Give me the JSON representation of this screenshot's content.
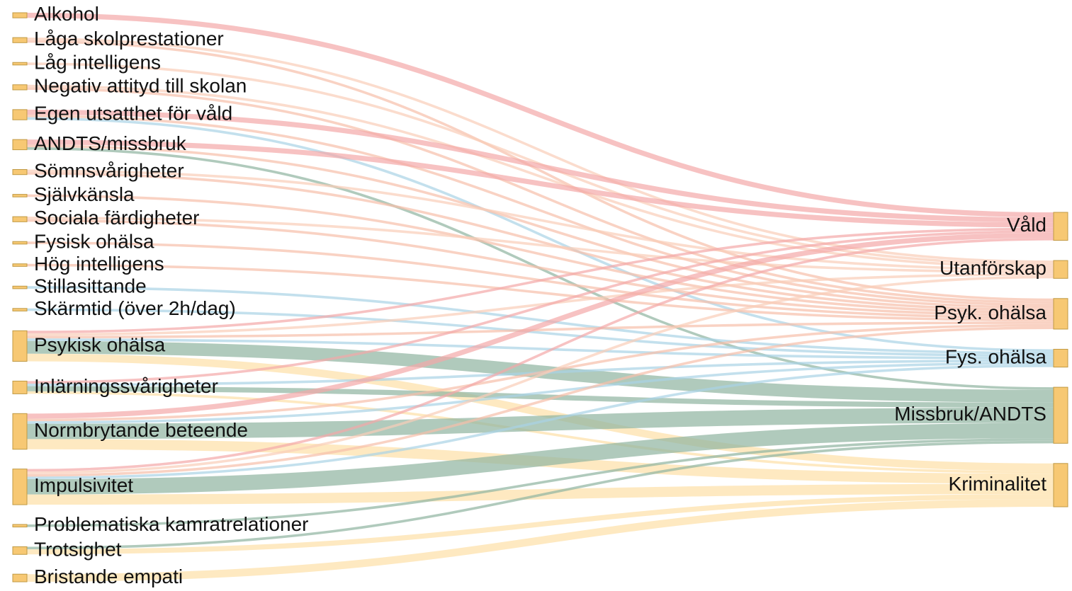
{
  "chart_data": {
    "type": "sankey",
    "node_color": "#f7c873",
    "node_stroke": "#c09a45",
    "nodes": [
      {
        "name": "Alkohol"
      },
      {
        "name": "Låga skolprestationer"
      },
      {
        "name": "Låg intelligens"
      },
      {
        "name": "Negativ attityd till skolan"
      },
      {
        "name": "Egen utsatthet för våld"
      },
      {
        "name": "ANDTS/missbruk"
      },
      {
        "name": "Sömnsvårigheter"
      },
      {
        "name": "Självkänsla"
      },
      {
        "name": "Sociala färdigheter"
      },
      {
        "name": "Fysisk ohälsa"
      },
      {
        "name": "Hög intelligens"
      },
      {
        "name": "Stillasittande"
      },
      {
        "name": "Skärmtid (över 2h/dag)"
      },
      {
        "name": "Psykisk ohälsa"
      },
      {
        "name": "Inlärningssvårigheter"
      },
      {
        "name": "Normbrytande beteende"
      },
      {
        "name": "Impulsivitet"
      },
      {
        "name": "Problematiska kamratrelationer"
      },
      {
        "name": "Trotsighet"
      },
      {
        "name": "Bristande empati"
      },
      {
        "name": "Våld",
        "color": "#f4a8a8"
      },
      {
        "name": "Utanförskap",
        "color": "#f9cdb8"
      },
      {
        "name": "Psyk. ohälsa",
        "color": "#f6bfa9"
      },
      {
        "name": "Fys. ohälsa",
        "color": "#a9d3e6"
      },
      {
        "name": "Missbruk/ANDTS",
        "color": "#8fb39f"
      },
      {
        "name": "Kriminalitet",
        "color": "#fddfa6"
      }
    ],
    "links": [
      {
        "source": 0,
        "target": 20,
        "value": 2
      },
      {
        "source": 1,
        "target": 21,
        "value": 1
      },
      {
        "source": 1,
        "target": 22,
        "value": 1
      },
      {
        "source": 2,
        "target": 21,
        "value": 1
      },
      {
        "source": 3,
        "target": 21,
        "value": 1
      },
      {
        "source": 3,
        "target": 22,
        "value": 1
      },
      {
        "source": 4,
        "target": 20,
        "value": 2
      },
      {
        "source": 4,
        "target": 22,
        "value": 1
      },
      {
        "source": 4,
        "target": 23,
        "value": 1
      },
      {
        "source": 5,
        "target": 20,
        "value": 2
      },
      {
        "source": 5,
        "target": 22,
        "value": 1
      },
      {
        "source": 5,
        "target": 24,
        "value": 1
      },
      {
        "source": 6,
        "target": 21,
        "value": 1
      },
      {
        "source": 6,
        "target": 22,
        "value": 1
      },
      {
        "source": 7,
        "target": 22,
        "value": 1
      },
      {
        "source": 8,
        "target": 21,
        "value": 1
      },
      {
        "source": 8,
        "target": 22,
        "value": 1
      },
      {
        "source": 9,
        "target": 22,
        "value": 1
      },
      {
        "source": 10,
        "target": 22,
        "value": 1
      },
      {
        "source": 11,
        "target": 23,
        "value": 1
      },
      {
        "source": 12,
        "target": 23,
        "value": 1
      },
      {
        "source": 13,
        "target": 20,
        "value": 1
      },
      {
        "source": 13,
        "target": 21,
        "value": 1
      },
      {
        "source": 13,
        "target": 22,
        "value": 1
      },
      {
        "source": 13,
        "target": 23,
        "value": 1
      },
      {
        "source": 13,
        "target": 24,
        "value": 5
      },
      {
        "source": 13,
        "target": 25,
        "value": 3
      },
      {
        "source": 14,
        "target": 20,
        "value": 1
      },
      {
        "source": 14,
        "target": 23,
        "value": 1
      },
      {
        "source": 14,
        "target": 24,
        "value": 2
      },
      {
        "source": 14,
        "target": 25,
        "value": 1
      },
      {
        "source": 15,
        "target": 20,
        "value": 2
      },
      {
        "source": 15,
        "target": 22,
        "value": 1
      },
      {
        "source": 15,
        "target": 23,
        "value": 1
      },
      {
        "source": 15,
        "target": 24,
        "value": 6
      },
      {
        "source": 15,
        "target": 25,
        "value": 4
      },
      {
        "source": 16,
        "target": 20,
        "value": 1
      },
      {
        "source": 16,
        "target": 21,
        "value": 1
      },
      {
        "source": 16,
        "target": 22,
        "value": 1
      },
      {
        "source": 16,
        "target": 23,
        "value": 1
      },
      {
        "source": 16,
        "target": 24,
        "value": 6
      },
      {
        "source": 16,
        "target": 25,
        "value": 4
      },
      {
        "source": 17,
        "target": 24,
        "value": 1
      },
      {
        "source": 18,
        "target": 24,
        "value": 1
      },
      {
        "source": 18,
        "target": 25,
        "value": 2
      },
      {
        "source": 19,
        "target": 25,
        "value": 3
      }
    ]
  }
}
